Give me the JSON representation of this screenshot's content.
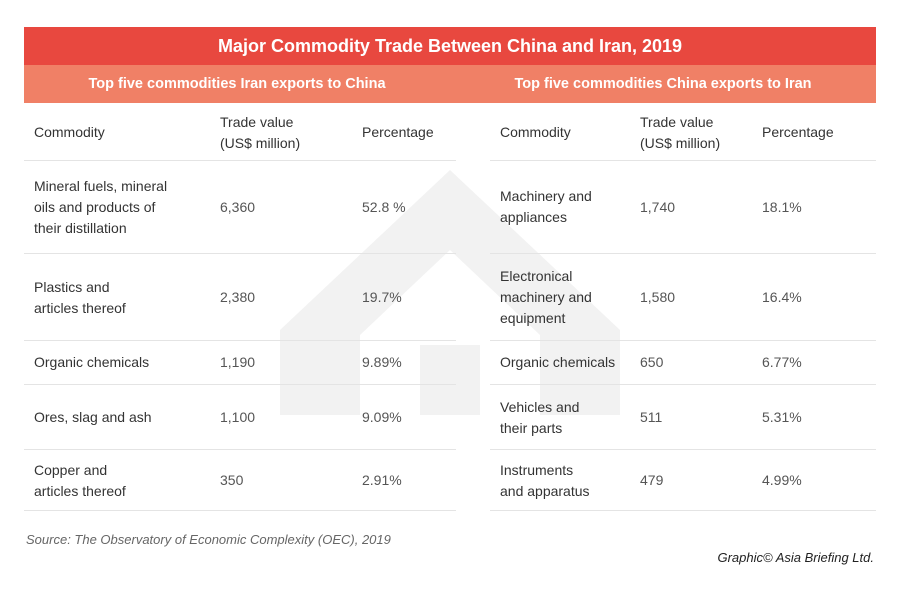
{
  "title": "Major Commodity Trade Between China and Iran, 2019",
  "left_table": {
    "heading": "Top five commodities Iran exports to China",
    "columns": {
      "commodity": "Commodity",
      "trade_value_line1": "Trade value",
      "trade_value_line2": "(US$ million)",
      "percentage": "Percentage"
    },
    "rows": [
      {
        "commodity": [
          "Mineral fuels, mineral",
          "oils and products of",
          "their distillation"
        ],
        "value": "6,360",
        "percent": "52.8 %"
      },
      {
        "commodity": [
          "Plastics and",
          "articles thereof"
        ],
        "value": "2,380",
        "percent": "19.7%"
      },
      {
        "commodity": [
          "Organic chemicals"
        ],
        "value": "1,190",
        "percent": "9.89%"
      },
      {
        "commodity": [
          "Ores, slag and ash"
        ],
        "value": "1,100",
        "percent": "9.09%"
      },
      {
        "commodity": [
          "Copper and",
          "articles thereof"
        ],
        "value": "350",
        "percent": "2.91%"
      }
    ]
  },
  "right_table": {
    "heading": "Top five commodities China exports to Iran",
    "columns": {
      "commodity": "Commodity",
      "trade_value_line1": "Trade value",
      "trade_value_line2": "(US$ million)",
      "percentage": "Percentage"
    },
    "rows": [
      {
        "commodity": [
          "Machinery and",
          "appliances"
        ],
        "value": "1,740",
        "percent": "18.1%"
      },
      {
        "commodity": [
          "Electronical",
          "machinery and",
          "equipment"
        ],
        "value": "1,580",
        "percent": "16.4%"
      },
      {
        "commodity": [
          "Organic chemicals"
        ],
        "value": "650",
        "percent": "6.77%"
      },
      {
        "commodity": [
          "Vehicles and",
          "their parts"
        ],
        "value": "511",
        "percent": "5.31%"
      },
      {
        "commodity": [
          "Instruments",
          "and apparatus"
        ],
        "value": "479",
        "percent": "4.99%"
      }
    ]
  },
  "source": "Source: The Observatory of Economic Complexity (OEC), 2019",
  "credit": "Graphic© Asia Briefing Ltd.",
  "colors": {
    "title_bar": "#e8483f",
    "sub_bar": "#f08066",
    "watermark": "#f0f0f0"
  }
}
